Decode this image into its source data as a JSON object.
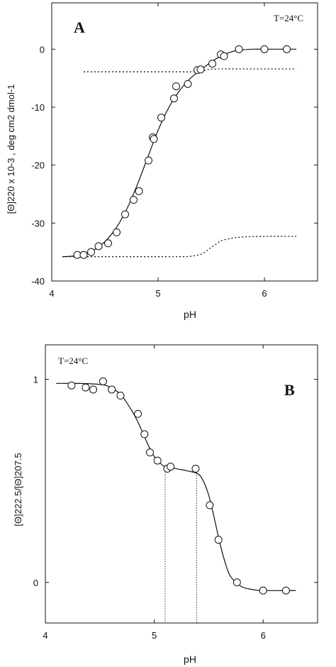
{
  "chart_data": [
    {
      "type": "scatter",
      "panel_label": "A",
      "annotation": "T=24°C",
      "xlabel": "pH",
      "ylabel": "[Θ]220 x 10-3 , deg cm2 dmol-1",
      "xlim": [
        4,
        6.5
      ],
      "ylim": [
        -40,
        8
      ],
      "x_ticks": [
        4,
        5,
        6
      ],
      "y_ticks": [
        0,
        -10,
        -20,
        -30,
        -40
      ],
      "x_tick_labels": [
        "4",
        "5",
        "6"
      ],
      "y_tick_labels": [
        "0",
        "-10",
        "-20",
        "-30",
        "-40"
      ],
      "series": [
        {
          "style": "markers",
          "x": [
            4.24,
            4.3,
            4.37,
            4.44,
            4.53,
            4.61,
            4.69,
            4.77,
            4.82,
            4.91,
            4.95,
            4.96,
            5.03,
            5.15,
            5.17,
            5.28,
            5.37,
            5.4,
            5.51,
            5.59,
            5.62,
            5.76,
            6.0,
            6.21
          ],
          "y": [
            -35.5,
            -35.5,
            -35.0,
            -34.0,
            -33.5,
            -31.6,
            -28.5,
            -26.0,
            -24.5,
            -19.2,
            -15.2,
            -15.5,
            -11.8,
            -8.5,
            -6.4,
            -6.0,
            -3.6,
            -3.5,
            -2.5,
            -0.9,
            -1.2,
            0.0,
            0.0,
            0.0
          ]
        },
        {
          "style": "solid",
          "x": [
            4.1,
            4.2,
            4.3,
            4.4,
            4.5,
            4.6,
            4.7,
            4.8,
            4.9,
            5.0,
            5.1,
            5.2,
            5.3,
            5.4,
            5.5,
            5.6,
            5.7,
            5.8,
            5.9,
            6.0,
            6.1,
            6.2,
            6.3
          ],
          "y": [
            -35.8,
            -35.7,
            -35.3,
            -34.6,
            -33.2,
            -31.0,
            -27.8,
            -23.6,
            -18.8,
            -14.0,
            -10.1,
            -7.2,
            -5.1,
            -3.6,
            -2.2,
            -1.1,
            -0.4,
            -0.1,
            0.0,
            0.0,
            0.0,
            0.0,
            0.0
          ]
        },
        {
          "style": "dotted",
          "x": [
            4.3,
            4.4,
            4.6,
            4.8,
            5.0,
            5.2,
            5.3,
            5.4,
            5.45,
            5.5,
            5.6,
            5.8,
            6.0,
            6.3
          ],
          "y": [
            -3.9,
            -3.9,
            -3.9,
            -3.9,
            -3.9,
            -3.9,
            -3.9,
            -3.8,
            -3.6,
            -3.45,
            -3.4,
            -3.4,
            -3.4,
            -3.4
          ]
        },
        {
          "style": "dotted",
          "x": [
            4.1,
            4.5,
            5.0,
            5.2,
            5.3,
            5.4,
            5.45,
            5.5,
            5.55,
            5.6,
            5.7,
            5.8,
            6.0,
            6.3
          ],
          "y": [
            -35.8,
            -35.8,
            -35.8,
            -35.8,
            -35.75,
            -35.4,
            -34.9,
            -34.2,
            -33.6,
            -33.0,
            -32.6,
            -32.4,
            -32.3,
            -32.3
          ]
        }
      ]
    },
    {
      "type": "scatter",
      "panel_label": "B",
      "annotation": "T=24°C",
      "xlabel": "pH",
      "ylabel": "[Θ]222.5/[Θ]207.5",
      "xlim": [
        4,
        6.5
      ],
      "ylim": [
        -0.2,
        1.17
      ],
      "x_ticks": [
        4,
        5,
        6
      ],
      "y_ticks": [
        0,
        1
      ],
      "x_tick_labels": [
        "4",
        "5",
        "6"
      ],
      "y_tick_labels": [
        "0",
        "1"
      ],
      "series": [
        {
          "style": "markers",
          "x": [
            4.24,
            4.37,
            4.44,
            4.53,
            4.61,
            4.69,
            4.85,
            4.91,
            4.96,
            5.03,
            5.12,
            5.15,
            5.38,
            5.51,
            5.59,
            5.76,
            6.0,
            6.21
          ],
          "y": [
            0.97,
            0.96,
            0.95,
            0.99,
            0.95,
            0.92,
            0.83,
            0.73,
            0.64,
            0.6,
            0.56,
            0.57,
            0.56,
            0.38,
            0.21,
            0.0,
            -0.04,
            -0.04
          ]
        },
        {
          "style": "solid",
          "x": [
            4.1,
            4.3,
            4.5,
            4.6,
            4.7,
            4.8,
            4.85,
            4.9,
            4.95,
            5.0,
            5.05,
            5.1,
            5.2,
            5.3,
            5.4,
            5.45,
            5.5,
            5.55,
            5.6,
            5.65,
            5.7,
            5.8,
            5.9,
            6.0,
            6.3
          ],
          "y": [
            0.98,
            0.98,
            0.975,
            0.96,
            0.92,
            0.84,
            0.79,
            0.73,
            0.67,
            0.62,
            0.59,
            0.57,
            0.56,
            0.55,
            0.535,
            0.5,
            0.43,
            0.32,
            0.2,
            0.1,
            0.03,
            -0.02,
            -0.035,
            -0.04,
            -0.04
          ]
        }
      ],
      "drop_lines": [
        {
          "x": 5.1,
          "y": 0.57
        },
        {
          "x": 5.39,
          "y": 0.54
        }
      ]
    }
  ]
}
